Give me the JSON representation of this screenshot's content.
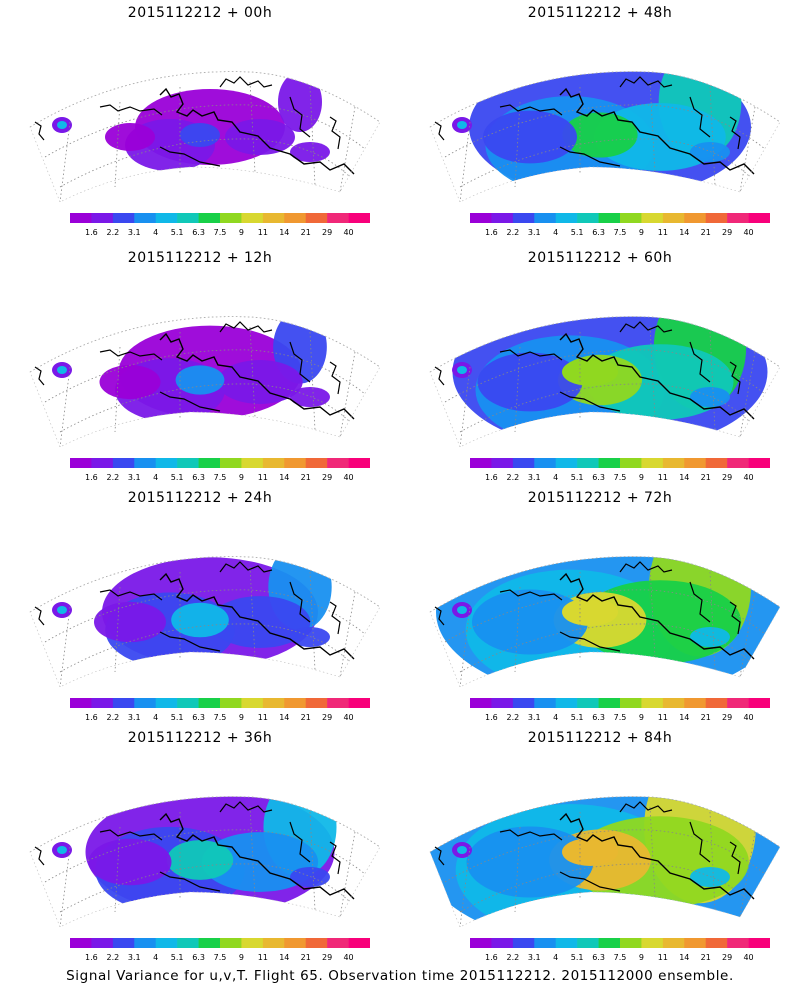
{
  "panels": [
    {
      "title": "2015112212 + 00h",
      "intensity": 0
    },
    {
      "title": "2015112212 + 48h",
      "intensity": 4
    },
    {
      "title": "2015112212 + 12h",
      "intensity": 1
    },
    {
      "title": "2015112212 + 60h",
      "intensity": 5
    },
    {
      "title": "2015112212 + 24h",
      "intensity": 2
    },
    {
      "title": "2015112212 + 72h",
      "intensity": 6
    },
    {
      "title": "2015112212 + 36h",
      "intensity": 3
    },
    {
      "title": "2015112212 + 84h",
      "intensity": 7
    }
  ],
  "colorbar": {
    "labels": [
      "1.6",
      "2.2",
      "3.1",
      "4",
      "5.1",
      "6.3",
      "7.5",
      "9",
      "11",
      "14",
      "21",
      "29",
      "40"
    ],
    "colors": [
      "#9a00d8",
      "#7a18e8",
      "#3a48f0",
      "#1890f0",
      "#10b8e8",
      "#10c8b8",
      "#18d048",
      "#90d820",
      "#d8d830",
      "#e8b830",
      "#f09830",
      "#f06838",
      "#f02878",
      "#f8007a"
    ]
  },
  "footer": "Signal Variance for u,v,T. Flight 65. Observation time 2015112212. 2015112000 ensemble."
}
